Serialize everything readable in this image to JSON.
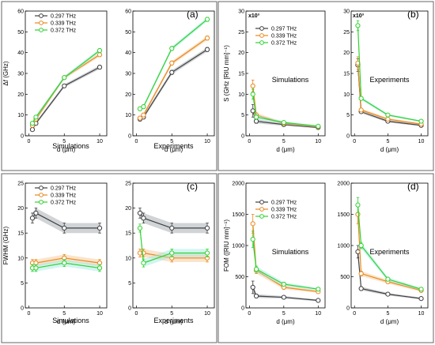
{
  "colors": {
    "s1": "#404040",
    "s2": "#e8891e",
    "s3": "#2fd32f",
    "band1": "#9aa0a6",
    "band2": "#f5c48c",
    "band3": "#9be6e0"
  },
  "legend_entries": [
    "0.297 THz",
    "0.339 THz",
    "0.372 THz"
  ],
  "chart_data": [
    {
      "panel": "a",
      "type": "line",
      "panel_label": "(a)",
      "ylabel": "Δf (GHz)",
      "ylim": [
        0,
        60
      ],
      "yticks": [
        0,
        10,
        20,
        30,
        40,
        50,
        60
      ],
      "legend": "top-left",
      "subplots": [
        {
          "name": "Simulations",
          "xlabel": "d (μm)",
          "xlim": [
            -0.5,
            11
          ],
          "xticks": [
            0,
            5,
            10
          ],
          "series": [
            {
              "name": "0.297 THz",
              "x": [
                0.5,
                1,
                5,
                10
              ],
              "y": [
                3,
                6,
                24,
                33
              ],
              "err": [
                0.8,
                0.8,
                0.8,
                0.9
              ]
            },
            {
              "name": "0.339 THz",
              "x": [
                0.5,
                1,
                5,
                10
              ],
              "y": [
                5,
                8,
                28,
                39
              ],
              "err": [
                0.8,
                0.8,
                0.8,
                0.9
              ]
            },
            {
              "name": "0.372 THz",
              "x": [
                0.5,
                1,
                5,
                10
              ],
              "y": [
                6,
                9,
                28,
                41
              ],
              "err": [
                0.8,
                0.8,
                0.8,
                0.9
              ]
            }
          ]
        },
        {
          "name": "Experiments",
          "xlabel": "d (μm)",
          "xlim": [
            -0.5,
            11
          ],
          "xticks": [
            0,
            5,
            10
          ],
          "series": [
            {
              "name": "0.297 THz",
              "x": [
                0.5,
                1,
                5,
                10
              ],
              "y": [
                8,
                9,
                30.5,
                41.5
              ],
              "err": [
                0.9,
                0.9,
                1,
                1
              ]
            },
            {
              "name": "0.339 THz",
              "x": [
                0.5,
                1,
                5,
                10
              ],
              "y": [
                8.5,
                10,
                35,
                47
              ],
              "err": [
                0.9,
                0.9,
                1,
                1
              ]
            },
            {
              "name": "0.372 THz",
              "x": [
                0.5,
                1,
                5,
                10
              ],
              "y": [
                13,
                14,
                42,
                56
              ],
              "err": [
                0.9,
                0.9,
                1,
                1
              ]
            }
          ]
        }
      ]
    },
    {
      "panel": "b",
      "type": "line",
      "panel_label": "(b)",
      "ylabel": "S (GHz [RIU mm]⁻¹)",
      "ylim": [
        0,
        30
      ],
      "yticks": [
        0,
        5,
        10,
        15,
        20,
        25,
        30
      ],
      "multiplier": "x10³",
      "legend": "top-left",
      "subplots": [
        {
          "name": "Simulations",
          "xlabel": "d (μm)",
          "xlim": [
            -0.5,
            11
          ],
          "xticks": [
            0,
            5,
            10
          ],
          "series": [
            {
              "name": "0.297 THz",
              "x": [
                0.5,
                1,
                5,
                10
              ],
              "y": [
                6,
                3.5,
                2.7,
                2.0
              ],
              "err": [
                1.5,
                0.5,
                0.3,
                0.2
              ]
            },
            {
              "name": "0.339 THz",
              "x": [
                0.5,
                1,
                5,
                10
              ],
              "y": [
                12,
                5,
                3,
                2.2
              ],
              "err": [
                1.4,
                0.5,
                0.3,
                0.2
              ]
            },
            {
              "name": "0.372 THz",
              "x": [
                0.5,
                1,
                5,
                10
              ],
              "y": [
                10,
                4.5,
                3.2,
                2.3
              ],
              "err": [
                1.2,
                0.5,
                0.3,
                0.2
              ]
            }
          ]
        },
        {
          "name": "Experiments",
          "xlabel": "d (μm)",
          "xlim": [
            -0.5,
            11
          ],
          "xticks": [
            0,
            5,
            10
          ],
          "series": [
            {
              "name": "0.297 THz",
              "x": [
                0.5,
                1,
                5,
                10
              ],
              "y": [
                17,
                5.8,
                3.5,
                2.5
              ],
              "err": [
                1.5,
                0.4,
                0.3,
                0.2
              ]
            },
            {
              "name": "0.339 THz",
              "x": [
                0.5,
                1,
                5,
                10
              ],
              "y": [
                17.5,
                6.2,
                4,
                2.8
              ],
              "err": [
                1.5,
                0.4,
                0.3,
                0.2
              ]
            },
            {
              "name": "0.372 THz",
              "x": [
                0.5,
                1,
                5,
                10
              ],
              "y": [
                26.5,
                9,
                5,
                3.5
              ],
              "err": [
                1.2,
                0.4,
                0.3,
                0.2
              ]
            }
          ]
        }
      ]
    },
    {
      "panel": "c",
      "type": "line",
      "panel_label": "(c)",
      "ylabel": "FWHM (GHz)",
      "ylim": [
        0,
        25
      ],
      "yticks": [
        0,
        5,
        10,
        15,
        20,
        25
      ],
      "legend": "top-left",
      "subplots": [
        {
          "name": "Simulations",
          "xlabel": "d (μm)",
          "xlim": [
            -0.5,
            11
          ],
          "xticks": [
            0,
            5,
            10
          ],
          "series": [
            {
              "name": "0.297 THz",
              "x": [
                0.5,
                1,
                5,
                10
              ],
              "y": [
                18,
                19,
                16,
                16
              ],
              "err": [
                1,
                1,
                1,
                1
              ]
            },
            {
              "name": "0.339 THz",
              "x": [
                0.5,
                1,
                5,
                10
              ],
              "y": [
                9,
                9,
                10,
                9
              ],
              "err": [
                0.7,
                0.7,
                0.7,
                0.7
              ]
            },
            {
              "name": "0.372 THz",
              "x": [
                0.5,
                1,
                5,
                10
              ],
              "y": [
                8,
                8,
                9,
                8
              ],
              "err": [
                0.7,
                0.7,
                0.7,
                0.7
              ]
            }
          ]
        },
        {
          "name": "Experiments",
          "xlabel": "d (μm)",
          "xlim": [
            -0.5,
            11
          ],
          "xticks": [
            0,
            5,
            10
          ],
          "series": [
            {
              "name": "0.297 THz",
              "x": [
                0.5,
                1,
                5,
                10
              ],
              "y": [
                19,
                18,
                16,
                16
              ],
              "err": [
                1,
                1,
                1,
                1
              ]
            },
            {
              "name": "0.339 THz",
              "x": [
                0.5,
                1,
                5,
                10
              ],
              "y": [
                11,
                11,
                10,
                10
              ],
              "err": [
                0.8,
                0.8,
                0.8,
                0.8
              ]
            },
            {
              "name": "0.372 THz",
              "x": [
                0.5,
                1,
                5,
                10
              ],
              "y": [
                16,
                9,
                11,
                11
              ],
              "err": [
                0.8,
                0.8,
                0.8,
                0.8
              ]
            }
          ]
        }
      ]
    },
    {
      "panel": "d",
      "type": "line",
      "panel_label": "(d)",
      "ylabel": "FOM ([RIU mm]⁻¹)",
      "ylim": [
        0,
        2000
      ],
      "yticks": [
        0,
        500,
        1000,
        1500,
        2000
      ],
      "legend": "top-left",
      "subplots": [
        {
          "name": "Simulations",
          "xlabel": "d (μm)",
          "xlim": [
            -0.5,
            11
          ],
          "xticks": [
            0,
            5,
            10
          ],
          "series": [
            {
              "name": "0.297 THz",
              "x": [
                0.5,
                1,
                5,
                10
              ],
              "y": [
                330,
                190,
                170,
                120
              ],
              "err": [
                100,
                30,
                20,
                15
              ]
            },
            {
              "name": "0.339 THz",
              "x": [
                0.5,
                1,
                5,
                10
              ],
              "y": [
                1350,
                600,
                330,
                260
              ],
              "err": [
                150,
                50,
                30,
                20
              ]
            },
            {
              "name": "0.372 THz",
              "x": [
                0.5,
                1,
                5,
                10
              ],
              "y": [
                1100,
                620,
                380,
                300
              ],
              "err": [
                130,
                50,
                30,
                20
              ]
            }
          ]
        },
        {
          "name": "Experiments",
          "xlabel": "d (μm)",
          "xlim": [
            -0.5,
            11
          ],
          "xticks": [
            0,
            5,
            10
          ],
          "series": [
            {
              "name": "0.297 THz",
              "x": [
                0.5,
                1,
                5,
                10
              ],
              "y": [
                900,
                310,
                220,
                150
              ],
              "err": [
                100,
                30,
                20,
                15
              ]
            },
            {
              "name": "0.339 THz",
              "x": [
                0.5,
                1,
                5,
                10
              ],
              "y": [
                1500,
                550,
                420,
                280
              ],
              "err": [
                150,
                40,
                30,
                20
              ]
            },
            {
              "name": "0.372 THz",
              "x": [
                0.5,
                1,
                5,
                10
              ],
              "y": [
                1650,
                1000,
                460,
                300
              ],
              "err": [
                120,
                50,
                30,
                20
              ]
            }
          ]
        }
      ]
    }
  ]
}
